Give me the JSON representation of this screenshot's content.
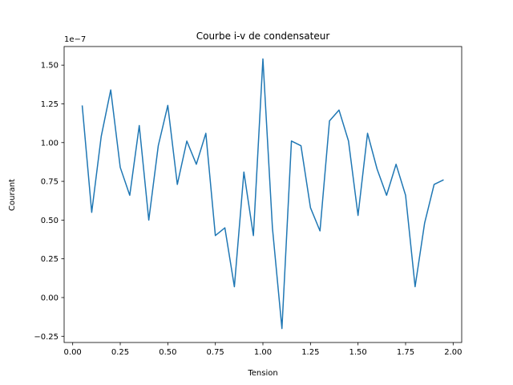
{
  "chart_data": {
    "type": "line",
    "title": "Courbe i-v de condensateur",
    "xlabel": "Tension",
    "ylabel": "Courant",
    "y_offset_label": "1e−7",
    "xlim": [
      -0.045,
      2.045
    ],
    "ylim": [
      -0.29,
      1.62
    ],
    "y_scale_factor": 1e-07,
    "xticks": [
      0.0,
      0.25,
      0.5,
      0.75,
      1.0,
      1.25,
      1.5,
      1.75,
      2.0
    ],
    "xtick_labels": [
      "0.00",
      "0.25",
      "0.50",
      "0.75",
      "1.00",
      "1.25",
      "1.50",
      "1.75",
      "2.00"
    ],
    "yticks": [
      -0.25,
      0.0,
      0.25,
      0.5,
      0.75,
      1.0,
      1.25,
      1.5
    ],
    "ytick_labels": [
      "−0.25",
      "0.00",
      "0.25",
      "0.50",
      "0.75",
      "1.00",
      "1.25",
      "1.50"
    ],
    "grid": false,
    "series": [
      {
        "color": "#1f77b4",
        "x": [
          0.05,
          0.1,
          0.15,
          0.2,
          0.25,
          0.3,
          0.35,
          0.4,
          0.45,
          0.5,
          0.55,
          0.6,
          0.65,
          0.7,
          0.75,
          0.8,
          0.85,
          0.9,
          0.95,
          1.0,
          1.05,
          1.1,
          1.15,
          1.2,
          1.25,
          1.3,
          1.35,
          1.4,
          1.45,
          1.5,
          1.55,
          1.6,
          1.65,
          1.7,
          1.75,
          1.8,
          1.85,
          1.9,
          1.95
        ],
        "y": [
          1.24,
          0.55,
          1.04,
          1.34,
          0.84,
          0.66,
          1.11,
          0.5,
          0.98,
          1.24,
          0.73,
          1.01,
          0.86,
          1.06,
          0.4,
          0.45,
          0.07,
          0.81,
          0.4,
          1.54,
          0.45,
          -0.2,
          1.01,
          0.98,
          0.58,
          0.43,
          1.14,
          1.21,
          1.01,
          0.53,
          1.06,
          0.83,
          0.66,
          0.86,
          0.66,
          0.07,
          0.48,
          0.73,
          0.76
        ]
      }
    ]
  }
}
